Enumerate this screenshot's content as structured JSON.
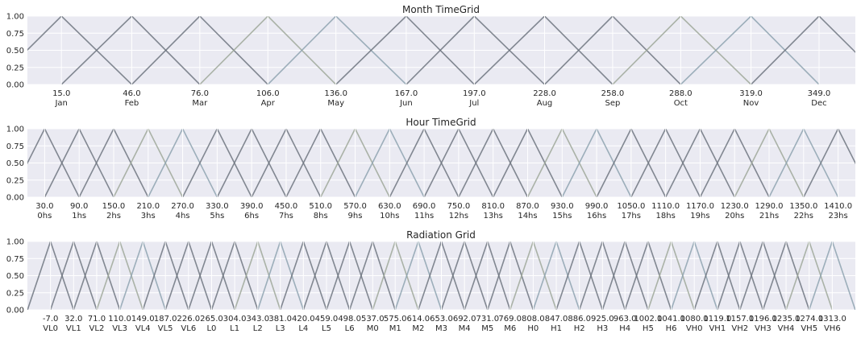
{
  "colors": {
    "background": "#eaeaf2",
    "grid": "#ffffff",
    "text": "#262626",
    "series_palette": [
      "#6f7580",
      "#6f7580",
      "#6f7580",
      "#9fa89a",
      "#8ea3b0",
      "#6f7580",
      "#6f7580",
      "#6f7580",
      "#6f7580",
      "#9fa89a",
      "#8ea3b0",
      "#6f7580"
    ]
  },
  "chart_data": [
    {
      "type": "line",
      "title": "Month TimeGrid",
      "xlim": [
        0,
        365
      ],
      "ylim": [
        0,
        1
      ],
      "yticks": [
        "0.00",
        "0.25",
        "0.50",
        "0.75",
        "1.00"
      ],
      "grid": true,
      "centers": [
        15.0,
        46.0,
        76.0,
        106.0,
        136.0,
        167.0,
        197.0,
        228.0,
        258.0,
        288.0,
        319.0,
        349.0
      ],
      "tick_values": [
        "15.0",
        "46.0",
        "76.0",
        "106.0",
        "136.0",
        "167.0",
        "197.0",
        "228.0",
        "258.0",
        "288.0",
        "319.0",
        "349.0"
      ],
      "tick_names": [
        "Jan",
        "Feb",
        "Mar",
        "Apr",
        "May",
        "Jun",
        "Jul",
        "Aug",
        "Sep",
        "Oct",
        "Nov",
        "Dec"
      ]
    },
    {
      "type": "line",
      "title": "Hour TimeGrid",
      "xlim": [
        0,
        1440
      ],
      "ylim": [
        0,
        1
      ],
      "yticks": [
        "0.00",
        "0.25",
        "0.50",
        "0.75",
        "1.00"
      ],
      "grid": true,
      "centers": [
        30,
        90,
        150,
        210,
        270,
        330,
        390,
        450,
        510,
        570,
        630,
        690,
        750,
        810,
        870,
        930,
        990,
        1050,
        1110,
        1170,
        1230,
        1290,
        1350,
        1410
      ],
      "tick_values": [
        "30.0",
        "90.0",
        "150.0",
        "210.0",
        "270.0",
        "330.0",
        "390.0",
        "450.0",
        "510.0",
        "570.0",
        "630.0",
        "690.0",
        "750.0",
        "810.0",
        "870.0",
        "930.0",
        "990.0",
        "1050.0",
        "1110.0",
        "1170.0",
        "1230.0",
        "1290.0",
        "1350.0",
        "1410.0"
      ],
      "tick_names": [
        "0hs",
        "1hs",
        "2hs",
        "3hs",
        "4hs",
        "5hs",
        "6hs",
        "7hs",
        "8hs",
        "9hs",
        "10hs",
        "11hs",
        "12hs",
        "13hs",
        "14hs",
        "15hs",
        "16hs",
        "17hs",
        "18hs",
        "19hs",
        "20hs",
        "21hs",
        "22hs",
        "23hs"
      ]
    },
    {
      "type": "line",
      "title": "Radiation Grid",
      "xlim": [
        -46,
        1352
      ],
      "ylim": [
        0,
        1
      ],
      "yticks": [
        "0.00",
        "0.25",
        "0.50",
        "0.75",
        "1.00"
      ],
      "grid": true,
      "centers": [
        -7,
        32,
        71,
        110,
        149,
        187,
        226,
        265,
        304,
        343,
        381,
        420,
        459,
        498,
        537,
        575,
        614,
        653,
        692,
        731,
        769,
        808,
        847,
        886,
        925,
        963,
        1002,
        1041,
        1080,
        1119,
        1157,
        1196,
        1235,
        1274,
        1313
      ],
      "tick_values": [
        "-7.0",
        "32.0",
        "71.0",
        "110.0",
        "149.0",
        "187.0",
        "226.0",
        "265.0",
        "304.0",
        "343.0",
        "381.0",
        "420.0",
        "459.0",
        "498.0",
        "537.0",
        "575.0",
        "614.0",
        "653.0",
        "692.0",
        "731.0",
        "769.0",
        "808.0",
        "847.0",
        "886.0",
        "925.0",
        "963.0",
        "1002.0",
        "1041.0",
        "1080.0",
        "1119.0",
        "1157.0",
        "1196.0",
        "1235.0",
        "1274.0",
        "1313.0"
      ],
      "tick_names": [
        "VL0",
        "VL1",
        "VL2",
        "VL3",
        "VL4",
        "VL5",
        "VL6",
        "L0",
        "L1",
        "L2",
        "L3",
        "L4",
        "L5",
        "L6",
        "M0",
        "M1",
        "M2",
        "M3",
        "M4",
        "M5",
        "M6",
        "H0",
        "H1",
        "H2",
        "H3",
        "H4",
        "H5",
        "H6",
        "VH0",
        "VH1",
        "VH2",
        "VH3",
        "VH4",
        "VH5",
        "VH6"
      ]
    }
  ]
}
